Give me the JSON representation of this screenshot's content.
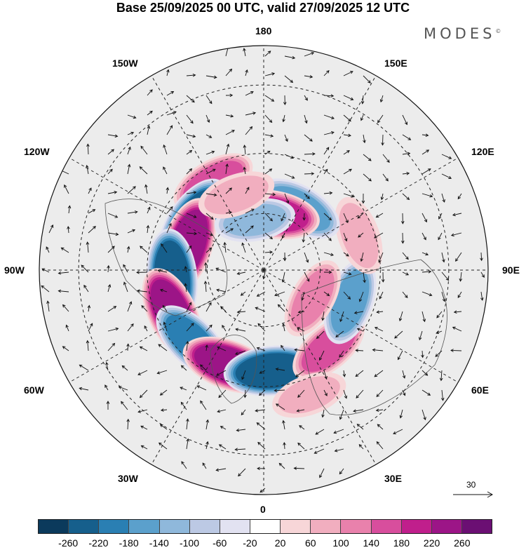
{
  "title": "Base 25/09/2025 00 UTC, valid 27/09/2025 12 UTC",
  "brand": "MODES",
  "brand_mark": "©",
  "longitude_labels": {
    "top": "180",
    "bottom": "0",
    "left": "90W",
    "right": "90E",
    "upper_left_1": "150W",
    "upper_left_2": "120W",
    "upper_right_1": "150E",
    "upper_right_2": "120E",
    "lower_left_1": "60W",
    "lower_left_2": "30W",
    "lower_right_1": "60E",
    "lower_right_2": "30E"
  },
  "reference_vector": {
    "label": "30",
    "icon": "arrow-right-icon"
  },
  "colorbar": {
    "colors": [
      "#0b3a5c",
      "#165f8c",
      "#2a7fb3",
      "#5ba0cc",
      "#8fb8db",
      "#bcc9e4",
      "#e2e2f1",
      "#ffffff",
      "#f7d6d8",
      "#f1aebf",
      "#e981ac",
      "#d84e9d",
      "#c01f8c",
      "#9c1587",
      "#6b0f73"
    ],
    "tick_labels": [
      "-260",
      "-220",
      "-180",
      "-140",
      "-100",
      "-60",
      "-20",
      "20",
      "60",
      "100",
      "140",
      "180",
      "220",
      "260"
    ]
  },
  "map": {
    "projection": "north-polar-stereographic",
    "field": "streamfunction anomaly with wind vectors",
    "anomaly_centers": [
      {
        "lon": -150,
        "lat": 55,
        "value": 150
      },
      {
        "lon": -125,
        "lat": 60,
        "value": -230
      },
      {
        "lon": -108,
        "lat": 62,
        "value": 240
      },
      {
        "lon": -85,
        "lat": 58,
        "value": -250
      },
      {
        "lon": -65,
        "lat": 55,
        "value": 220
      },
      {
        "lon": -45,
        "lat": 55,
        "value": -180
      },
      {
        "lon": -20,
        "lat": 55,
        "value": 230
      },
      {
        "lon": 5,
        "lat": 55,
        "value": -240
      },
      {
        "lon": 40,
        "lat": 55,
        "value": 140
      },
      {
        "lon": 70,
        "lat": 58,
        "value": -160
      },
      {
        "lon": 110,
        "lat": 55,
        "value": 90
      },
      {
        "lon": 150,
        "lat": 65,
        "value": -170
      },
      {
        "lon": 170,
        "lat": 70,
        "value": 200
      },
      {
        "lon": -170,
        "lat": 72,
        "value": -100
      },
      {
        "lon": -160,
        "lat": 62,
        "value": 80
      },
      {
        "lon": 20,
        "lat": 45,
        "value": 60
      },
      {
        "lon": 60,
        "lat": 70,
        "value": 120
      }
    ]
  }
}
